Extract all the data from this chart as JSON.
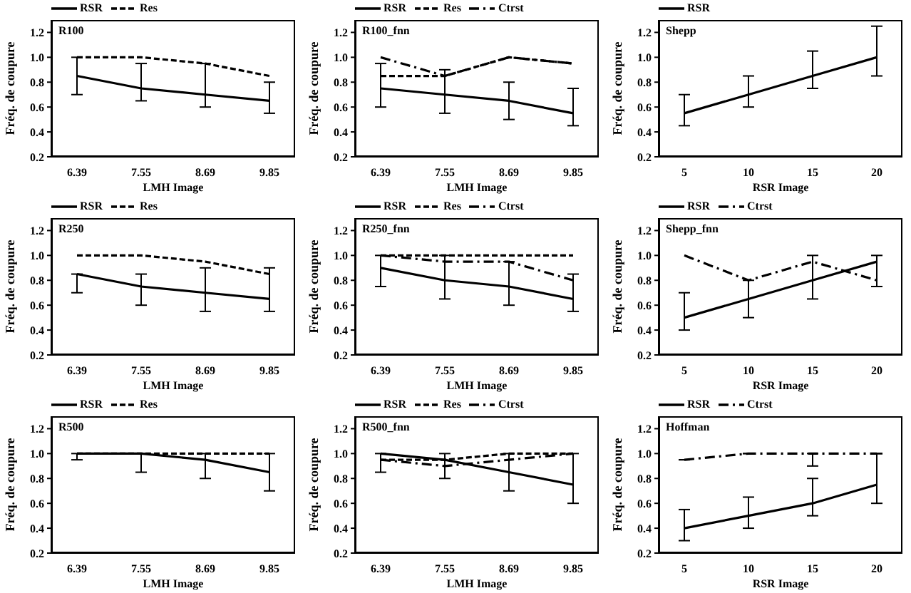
{
  "chart_data": [
    {
      "type": "line",
      "title": "R100",
      "xlabel": "LMH Image",
      "ylabel": "Fréq. de coupure",
      "categories": [
        "6.39",
        "7.55",
        "8.69",
        "9.85"
      ],
      "ylim": [
        0.2,
        1.3
      ],
      "yticks": [
        {
          "value": 0.2,
          "label": "0.2"
        },
        {
          "value": 0.4,
          "label": "0.4"
        },
        {
          "value": 0.6,
          "label": "0.6"
        },
        {
          "value": 0.8,
          "label": "0.8"
        },
        {
          "value": 1.0,
          "label": "1.0"
        },
        {
          "value": 1.2,
          "label": "1.2"
        }
      ],
      "grid": false,
      "legend": "top left",
      "marker": "none",
      "series": [
        {
          "name": "RSR",
          "color": "#000000",
          "line_style": "solid",
          "values": [
            0.85,
            0.75,
            0.7,
            0.65
          ],
          "errors": [
            [
              0.7,
              1.0
            ],
            [
              0.65,
              0.95
            ],
            [
              0.6,
              0.95
            ],
            [
              0.55,
              0.8
            ]
          ]
        },
        {
          "name": "Res",
          "color": "#000000",
          "line_style": "dashed",
          "values": [
            1.0,
            1.0,
            0.95,
            0.85
          ]
        }
      ]
    },
    {
      "type": "line",
      "title": "R100_fnn",
      "xlabel": "LMH Image",
      "ylabel": "Fréq. de coupure",
      "categories": [
        "6.39",
        "7.55",
        "8.69",
        "9.85"
      ],
      "ylim": [
        0.2,
        1.3
      ],
      "yticks": [
        {
          "value": 0.2,
          "label": "0.2"
        },
        {
          "value": 0.4,
          "label": "0.4"
        },
        {
          "value": 0.6,
          "label": "0.6"
        },
        {
          "value": 0.8,
          "label": "0.8"
        },
        {
          "value": 1.0,
          "label": "1.0"
        },
        {
          "value": 1.2,
          "label": "1.2"
        }
      ],
      "grid": false,
      "legend": "top left",
      "marker": "none",
      "series": [
        {
          "name": "RSR",
          "color": "#000000",
          "line_style": "solid",
          "values": [
            0.75,
            0.7,
            0.65,
            0.55
          ],
          "errors": [
            [
              0.6,
              0.95
            ],
            [
              0.55,
              0.9
            ],
            [
              0.5,
              0.8
            ],
            [
              0.45,
              0.75
            ]
          ]
        },
        {
          "name": "Res",
          "color": "#000000",
          "line_style": "dashed",
          "values": [
            0.85,
            0.85,
            1.0,
            0.95
          ]
        },
        {
          "name": "Ctrst",
          "color": "#000000",
          "line_style": "dotted",
          "values": [
            1.0,
            0.85,
            1.0,
            0.95
          ]
        }
      ]
    },
    {
      "type": "line",
      "title": "Shepp",
      "xlabel": "RSR Image",
      "ylabel": "Fréq. de coupure",
      "categories": [
        "5",
        "10",
        "15",
        "20"
      ],
      "ylim": [
        0.2,
        1.3
      ],
      "yticks": [
        {
          "value": 0.2,
          "label": "0.2"
        },
        {
          "value": 0.4,
          "label": "0.4"
        },
        {
          "value": 0.6,
          "label": "0.6"
        },
        {
          "value": 0.8,
          "label": "0.8"
        },
        {
          "value": 1.0,
          "label": "1.0"
        },
        {
          "value": 1.2,
          "label": "1.2"
        }
      ],
      "grid": false,
      "legend": "top left",
      "marker": "none",
      "series": [
        {
          "name": "RSR",
          "color": "#000000",
          "line_style": "solid",
          "values": [
            0.55,
            0.7,
            0.85,
            1.0
          ],
          "errors": [
            [
              0.45,
              0.7
            ],
            [
              0.6,
              0.85
            ],
            [
              0.75,
              1.05
            ],
            [
              0.85,
              1.25
            ]
          ]
        }
      ]
    },
    {
      "type": "line",
      "title": "R250",
      "xlabel": "LMH Image",
      "ylabel": "Fréq. de coupure",
      "categories": [
        "6.39",
        "7.55",
        "8.69",
        "9.85"
      ],
      "ylim": [
        0.2,
        1.3
      ],
      "yticks": [
        {
          "value": 0.2,
          "label": "0.2"
        },
        {
          "value": 0.4,
          "label": "0.4"
        },
        {
          "value": 0.6,
          "label": "0.6"
        },
        {
          "value": 0.8,
          "label": "0.8"
        },
        {
          "value": 1.0,
          "label": "1.0"
        },
        {
          "value": 1.2,
          "label": "1.2"
        }
      ],
      "grid": false,
      "legend": "top left",
      "marker": "none",
      "series": [
        {
          "name": "RSR",
          "color": "#000000",
          "line_style": "solid",
          "values": [
            0.85,
            0.75,
            0.7,
            0.65
          ],
          "errors": [
            [
              0.7,
              0.85
            ],
            [
              0.6,
              0.85
            ],
            [
              0.55,
              0.9
            ],
            [
              0.55,
              0.9
            ]
          ]
        },
        {
          "name": "Res",
          "color": "#000000",
          "line_style": "dashed",
          "values": [
            1.0,
            1.0,
            0.95,
            0.85
          ]
        }
      ]
    },
    {
      "type": "line",
      "title": "R250_fnn",
      "xlabel": "LMH Image",
      "ylabel": "Fréq. de coupure",
      "categories": [
        "6.39",
        "7.55",
        "8.69",
        "9.85"
      ],
      "ylim": [
        0.2,
        1.3
      ],
      "yticks": [
        {
          "value": 0.2,
          "label": "0.2"
        },
        {
          "value": 0.4,
          "label": "0.4"
        },
        {
          "value": 0.6,
          "label": "0.6"
        },
        {
          "value": 0.8,
          "label": "0.8"
        },
        {
          "value": 1.0,
          "label": "1.0"
        },
        {
          "value": 1.2,
          "label": "1.2"
        }
      ],
      "grid": false,
      "legend": "top left",
      "marker": "none",
      "series": [
        {
          "name": "RSR",
          "color": "#000000",
          "line_style": "solid",
          "values": [
            0.9,
            0.8,
            0.75,
            0.65
          ],
          "errors": [
            [
              0.75,
              1.0
            ],
            [
              0.65,
              1.0
            ],
            [
              0.6,
              0.95
            ],
            [
              0.55,
              0.85
            ]
          ]
        },
        {
          "name": "Res",
          "color": "#000000",
          "line_style": "dashed",
          "values": [
            1.0,
            1.0,
            1.0,
            1.0
          ]
        },
        {
          "name": "Ctrst",
          "color": "#000000",
          "line_style": "dotted",
          "values": [
            1.0,
            0.95,
            0.95,
            0.8
          ]
        }
      ]
    },
    {
      "type": "line",
      "title": "Shepp_fnn",
      "xlabel": "RSR Image",
      "ylabel": "Fréq. de coupure",
      "categories": [
        "5",
        "10",
        "15",
        "20"
      ],
      "ylim": [
        0.2,
        1.3
      ],
      "yticks": [
        {
          "value": 0.2,
          "label": "0.2"
        },
        {
          "value": 0.4,
          "label": "0.4"
        },
        {
          "value": 0.6,
          "label": "0.6"
        },
        {
          "value": 0.8,
          "label": "0.8"
        },
        {
          "value": 1.0,
          "label": "1.0"
        },
        {
          "value": 1.2,
          "label": "1.2"
        }
      ],
      "grid": false,
      "legend": "top left",
      "marker": "none",
      "series": [
        {
          "name": "RSR",
          "color": "#000000",
          "line_style": "solid",
          "values": [
            0.5,
            0.65,
            0.8,
            0.95
          ],
          "errors": [
            [
              0.4,
              0.7
            ],
            [
              0.5,
              0.8
            ],
            [
              0.65,
              1.0
            ],
            [
              0.75,
              1.0
            ]
          ]
        },
        {
          "name": "Ctrst",
          "color": "#000000",
          "line_style": "dotted",
          "values": [
            1.0,
            0.8,
            0.95,
            0.8
          ]
        }
      ]
    },
    {
      "type": "line",
      "title": "R500",
      "xlabel": "LMH Image",
      "ylabel": "Fréq. de coupure",
      "categories": [
        "6.39",
        "7.55",
        "8.69",
        "9.85"
      ],
      "ylim": [
        0.2,
        1.3
      ],
      "yticks": [
        {
          "value": 0.2,
          "label": "0.2"
        },
        {
          "value": 0.4,
          "label": "0.4"
        },
        {
          "value": 0.6,
          "label": "0.6"
        },
        {
          "value": 0.8,
          "label": "0.8"
        },
        {
          "value": 1.0,
          "label": "1.0"
        },
        {
          "value": 1.2,
          "label": "1.2"
        }
      ],
      "grid": false,
      "legend": "top left",
      "marker": "none",
      "series": [
        {
          "name": "RSR",
          "color": "#000000",
          "line_style": "solid",
          "values": [
            1.0,
            1.0,
            0.95,
            0.85
          ],
          "errors": [
            [
              0.95,
              1.0
            ],
            [
              0.85,
              1.0
            ],
            [
              0.8,
              1.0
            ],
            [
              0.7,
              1.0
            ]
          ]
        },
        {
          "name": "Res",
          "color": "#000000",
          "line_style": "dashed",
          "values": [
            1.0,
            1.0,
            1.0,
            1.0
          ]
        }
      ]
    },
    {
      "type": "line",
      "title": "R500_fnn",
      "xlabel": "LMH Image",
      "ylabel": "Fréq. de coupure",
      "categories": [
        "6.39",
        "7.55",
        "8.69",
        "9.85"
      ],
      "ylim": [
        0.2,
        1.3
      ],
      "yticks": [
        {
          "value": 0.2,
          "label": "0.2"
        },
        {
          "value": 0.4,
          "label": "0.4"
        },
        {
          "value": 0.6,
          "label": "0.6"
        },
        {
          "value": 0.8,
          "label": "0.8"
        },
        {
          "value": 1.0,
          "label": "1.0"
        },
        {
          "value": 1.2,
          "label": "1.2"
        }
      ],
      "grid": false,
      "legend": "top left",
      "marker": "none",
      "series": [
        {
          "name": "RSR",
          "color": "#000000",
          "line_style": "solid",
          "values": [
            1.0,
            0.95,
            0.85,
            0.75
          ],
          "errors": [
            [
              0.85,
              1.0
            ],
            [
              0.8,
              1.0
            ],
            [
              0.7,
              1.0
            ],
            [
              0.6,
              1.0
            ]
          ]
        },
        {
          "name": "Res",
          "color": "#000000",
          "line_style": "dashed",
          "values": [
            0.95,
            0.95,
            1.0,
            1.0
          ]
        },
        {
          "name": "Ctrst",
          "color": "#000000",
          "line_style": "dotted",
          "values": [
            0.95,
            0.9,
            0.95,
            1.0
          ]
        }
      ]
    },
    {
      "type": "line",
      "title": "Hoffman",
      "xlabel": "RSR Image",
      "ylabel": "Fréq. de coupure",
      "categories": [
        "5",
        "10",
        "15",
        "20"
      ],
      "ylim": [
        0.2,
        1.3
      ],
      "yticks": [
        {
          "value": 0.2,
          "label": "0.2"
        },
        {
          "value": 0.4,
          "label": "0.4"
        },
        {
          "value": 0.6,
          "label": "0.6"
        },
        {
          "value": 0.8,
          "label": "0.8"
        },
        {
          "value": 1.0,
          "label": "1.0"
        },
        {
          "value": 1.2,
          "label": "1.2"
        }
      ],
      "grid": false,
      "legend": "top left",
      "marker": "none",
      "series": [
        {
          "name": "RSR",
          "color": "#000000",
          "line_style": "solid",
          "values": [
            0.4,
            0.5,
            0.6,
            0.75
          ],
          "errors": [
            [
              0.3,
              0.55
            ],
            [
              0.4,
              0.65
            ],
            [
              0.5,
              0.8
            ],
            [
              0.6,
              1.0
            ]
          ]
        },
        {
          "name": "Ctrst",
          "color": "#000000",
          "line_style": "dotted",
          "values": [
            0.95,
            1.0,
            1.0,
            1.0
          ],
          "errors": [
            null,
            null,
            [
              0.9,
              1.0
            ],
            null
          ]
        }
      ]
    }
  ]
}
